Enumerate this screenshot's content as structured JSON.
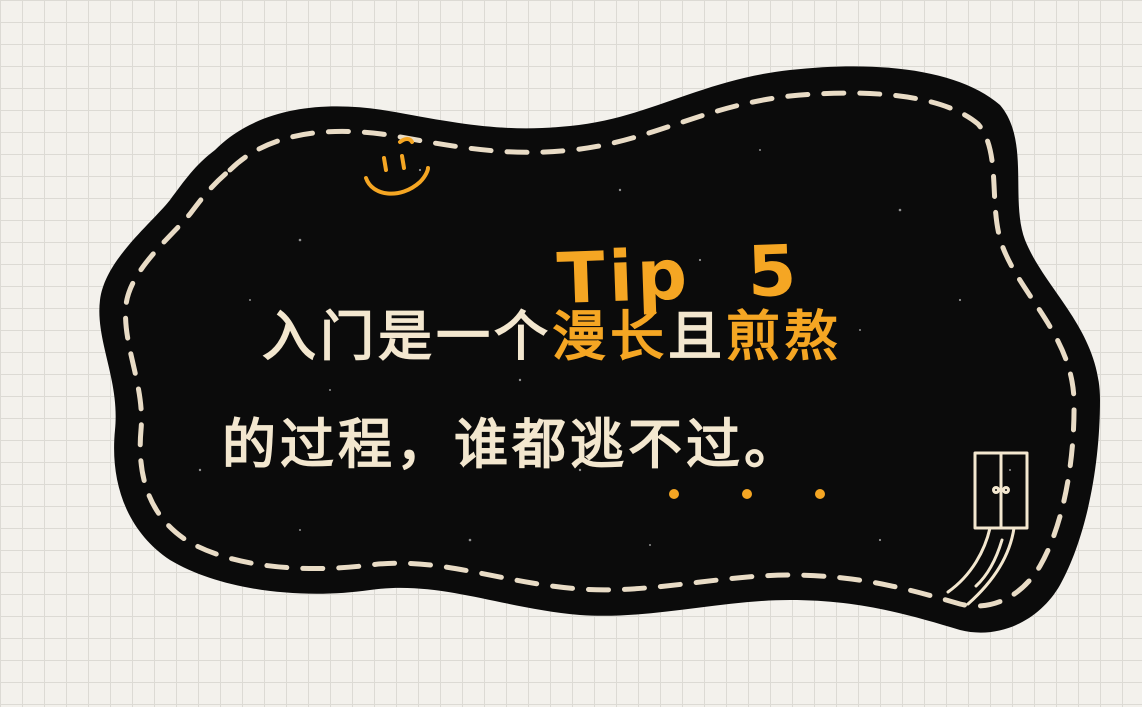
{
  "tip": {
    "label": "Tip",
    "number": "5",
    "full": "Tip  5"
  },
  "message": {
    "line1": [
      {
        "text": "入门是一个",
        "tone": "cream"
      },
      {
        "text": "漫长",
        "tone": "accent"
      },
      {
        "text": "且",
        "tone": "cream"
      },
      {
        "text": "煎熬",
        "tone": "accent"
      }
    ],
    "line2": [
      {
        "text": "的过程，谁都逃不过。",
        "tone": "cream"
      }
    ]
  },
  "colors": {
    "background": "#f3f1ec",
    "grid": "#dcdad4",
    "blob": "#0b0b0b",
    "stitch": "#e9dcc6",
    "text": "#f3e7cf",
    "accent": "#f5a623"
  }
}
